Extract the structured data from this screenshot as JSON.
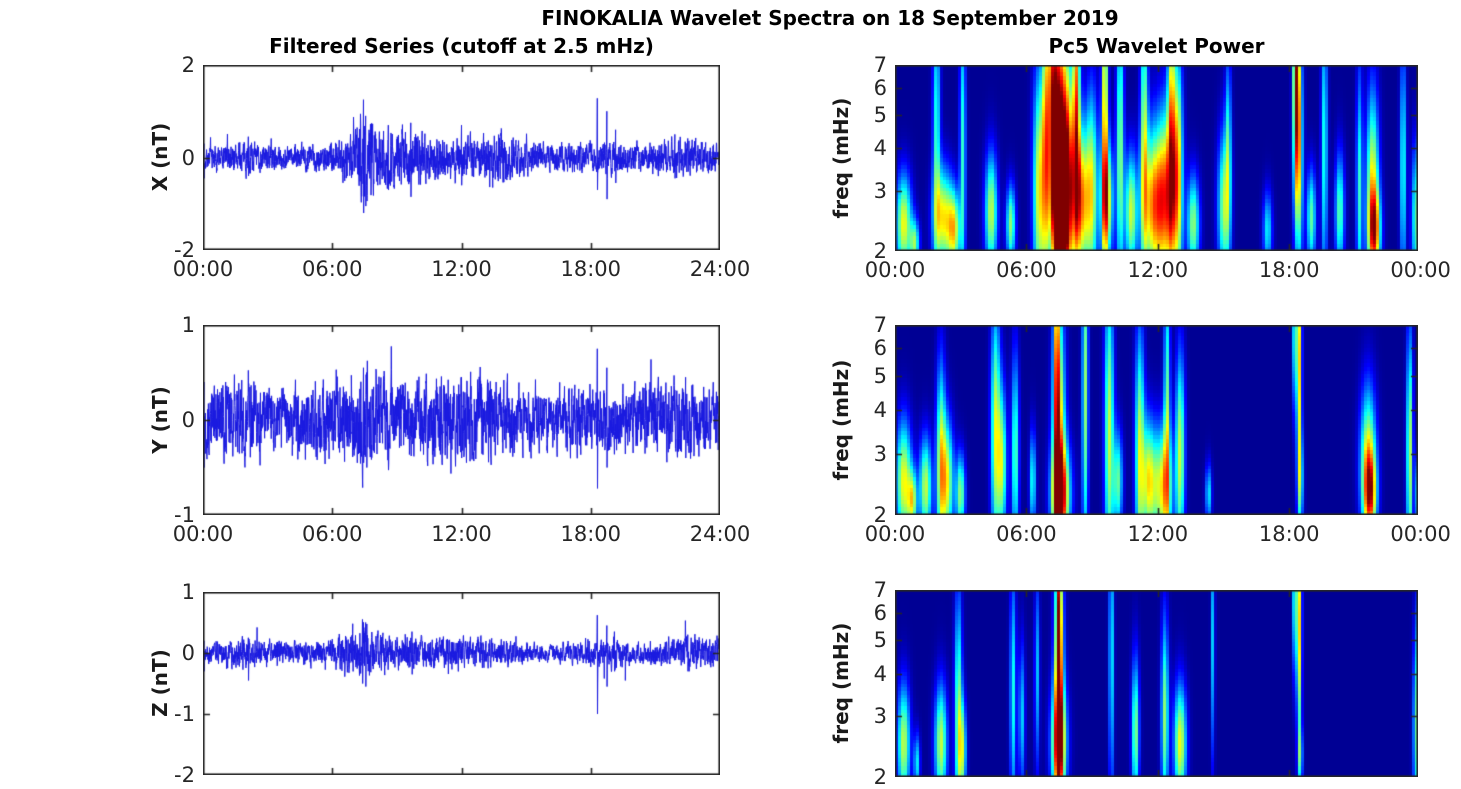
{
  "figure": {
    "title": "FINOKALIA Wavelet Spectra on 18 September 2019",
    "station": "FINOKALIA",
    "date": "18 September 2019",
    "background": "#ffffff",
    "axis_color": "#262626",
    "series_color": "#1a1ae0"
  },
  "columns": {
    "left": {
      "title": "Filtered Series (cutoff at 2.5 mHz)"
    },
    "right": {
      "title": "Pc5 Wavelet Power"
    }
  },
  "chart_data": [
    {
      "id": "x-filtered",
      "type": "line",
      "component": "X",
      "ylabel": "X (nT)",
      "ylim": [
        -2,
        2
      ],
      "yticks": [
        2,
        0,
        -2
      ],
      "xlim_hours": [
        0,
        24
      ],
      "xtick_hours": [
        0,
        6,
        12,
        18,
        24
      ],
      "xtick_labels": [
        "00:00",
        "06:00",
        "12:00",
        "18:00",
        "24:00"
      ],
      "envelope_nT": [
        [
          0,
          0.22
        ],
        [
          1,
          0.25
        ],
        [
          2,
          0.3
        ],
        [
          3,
          0.25
        ],
        [
          4,
          0.22
        ],
        [
          5,
          0.25
        ],
        [
          6,
          0.3
        ],
        [
          6.5,
          0.45
        ],
        [
          7,
          0.55
        ],
        [
          7.4,
          0.9
        ],
        [
          7.6,
          0.9
        ],
        [
          8,
          0.6
        ],
        [
          8.5,
          0.55
        ],
        [
          9,
          0.6
        ],
        [
          9.5,
          0.5
        ],
        [
          10,
          0.5
        ],
        [
          10.5,
          0.42
        ],
        [
          11,
          0.4
        ],
        [
          11.5,
          0.45
        ],
        [
          12,
          0.4
        ],
        [
          12.5,
          0.42
        ],
        [
          13,
          0.45
        ],
        [
          13.8,
          0.5
        ],
        [
          14.5,
          0.35
        ],
        [
          15,
          0.3
        ],
        [
          16,
          0.25
        ],
        [
          17,
          0.25
        ],
        [
          18,
          0.28
        ],
        [
          19,
          0.3
        ],
        [
          20,
          0.25
        ],
        [
          21,
          0.3
        ],
        [
          22,
          0.33
        ],
        [
          22.5,
          0.38
        ],
        [
          23,
          0.3
        ],
        [
          24,
          0.25
        ]
      ],
      "spikes_nT": [
        [
          0.05,
          0.3,
          -0.45
        ],
        [
          2.1,
          0.45,
          -0.4
        ],
        [
          7.45,
          1.25,
          -1.2
        ],
        [
          7.55,
          0.9,
          -1.05
        ],
        [
          8.6,
          0.7,
          -0.7
        ],
        [
          9.65,
          0.75,
          -0.85
        ],
        [
          12.0,
          0.7,
          -0.6
        ],
        [
          18.3,
          1.28,
          -0.7
        ],
        [
          18.75,
          1.0,
          -0.9
        ],
        [
          19.15,
          0.6,
          -0.55
        ],
        [
          21.9,
          0.5,
          -0.45
        ]
      ]
    },
    {
      "id": "y-filtered",
      "type": "line",
      "component": "Y",
      "ylabel": "Y (nT)",
      "ylim": [
        -1,
        1
      ],
      "yticks": [
        1,
        0,
        -1
      ],
      "xlim_hours": [
        0,
        24
      ],
      "xtick_hours": [
        0,
        6,
        12,
        18,
        24
      ],
      "xtick_labels": [
        "00:00",
        "06:00",
        "12:00",
        "18:00",
        "24:00"
      ],
      "envelope_nT": [
        [
          0,
          0.3
        ],
        [
          0.8,
          0.33
        ],
        [
          1.8,
          0.38
        ],
        [
          2.5,
          0.35
        ],
        [
          3,
          0.3
        ],
        [
          4,
          0.3
        ],
        [
          5,
          0.33
        ],
        [
          6,
          0.35
        ],
        [
          7,
          0.4
        ],
        [
          7.5,
          0.5
        ],
        [
          8,
          0.45
        ],
        [
          9,
          0.35
        ],
        [
          10,
          0.37
        ],
        [
          11,
          0.4
        ],
        [
          12,
          0.42
        ],
        [
          13,
          0.42
        ],
        [
          14,
          0.35
        ],
        [
          15,
          0.27
        ],
        [
          16,
          0.25
        ],
        [
          17,
          0.3
        ],
        [
          18,
          0.3
        ],
        [
          19,
          0.3
        ],
        [
          20,
          0.3
        ],
        [
          21,
          0.32
        ],
        [
          22,
          0.35
        ],
        [
          22.5,
          0.38
        ],
        [
          23,
          0.32
        ],
        [
          24,
          0.3
        ]
      ],
      "spikes_nT": [
        [
          0.05,
          0.4,
          -0.5
        ],
        [
          1.8,
          0.42,
          -0.35
        ],
        [
          7.45,
          0.55,
          -0.45
        ],
        [
          7.6,
          0.5,
          -0.5
        ],
        [
          12.0,
          0.45,
          -0.4
        ],
        [
          18.3,
          0.75,
          -0.72
        ],
        [
          18.75,
          0.55,
          -0.5
        ],
        [
          22.4,
          0.45,
          -0.4
        ]
      ]
    },
    {
      "id": "z-filtered",
      "type": "line",
      "component": "Z",
      "ylabel": "Z (nT)",
      "ylim": [
        -2,
        1
      ],
      "yticks": [
        1,
        0,
        -1,
        -2
      ],
      "xlim_hours": [
        0,
        24
      ],
      "xtick_hours": [
        6,
        12,
        18
      ],
      "xtick_labels": [],
      "envelope_nT": [
        [
          0,
          0.15
        ],
        [
          1,
          0.2
        ],
        [
          2,
          0.22
        ],
        [
          3,
          0.18
        ],
        [
          4,
          0.15
        ],
        [
          5,
          0.17
        ],
        [
          6,
          0.2
        ],
        [
          6.8,
          0.3
        ],
        [
          7.5,
          0.4
        ],
        [
          8,
          0.28
        ],
        [
          9,
          0.22
        ],
        [
          10,
          0.22
        ],
        [
          11,
          0.22
        ],
        [
          12,
          0.22
        ],
        [
          13,
          0.22
        ],
        [
          14,
          0.18
        ],
        [
          15,
          0.14
        ],
        [
          16,
          0.12
        ],
        [
          17,
          0.14
        ],
        [
          18,
          0.18
        ],
        [
          19,
          0.22
        ],
        [
          20,
          0.15
        ],
        [
          21,
          0.18
        ],
        [
          22,
          0.22
        ],
        [
          22.6,
          0.26
        ],
        [
          23,
          0.2
        ],
        [
          24,
          0.22
        ]
      ],
      "spikes_nT": [
        [
          0.05,
          0.2,
          -0.3
        ],
        [
          2.1,
          0.25,
          -0.45
        ],
        [
          7.4,
          0.55,
          -0.5
        ],
        [
          7.55,
          0.5,
          -0.55
        ],
        [
          9.7,
          0.35,
          -0.35
        ],
        [
          18.3,
          0.62,
          -1.0
        ],
        [
          18.75,
          0.45,
          -0.55
        ],
        [
          19.1,
          0.35,
          -0.3
        ],
        [
          19.6,
          0.1,
          -0.45
        ],
        [
          22.5,
          0.3,
          -0.3
        ]
      ]
    },
    {
      "id": "x-wavelet",
      "type": "heatmap",
      "component": "X",
      "ylabel": "freq (mHz)",
      "yscale": "log",
      "ylim_mHz": [
        2,
        7
      ],
      "yticks": [
        7,
        6,
        5,
        4,
        3,
        2
      ],
      "xtick_hours": [
        0,
        6,
        12,
        18,
        24
      ],
      "xtick_labels": [
        "00:00",
        "06:00",
        "12:00",
        "18:00",
        "00:00"
      ],
      "colormap": "jet",
      "hotspot_format": [
        "hour",
        "freq_mHz",
        "sigma_hours",
        "sigma_log10f",
        "power"
      ],
      "hotspots": [
        [
          0.4,
          2.4,
          0.25,
          0.1,
          0.6
        ],
        [
          0.9,
          2.1,
          0.15,
          0.05,
          0.45
        ],
        [
          1.9,
          4.5,
          0.12,
          0.28,
          0.4
        ],
        [
          2.2,
          2.5,
          0.3,
          0.1,
          0.6
        ],
        [
          2.7,
          2.3,
          0.2,
          0.08,
          0.55
        ],
        [
          3.1,
          4.0,
          0.1,
          0.3,
          0.4
        ],
        [
          4.4,
          2.6,
          0.2,
          0.12,
          0.55
        ],
        [
          5.3,
          2.4,
          0.15,
          0.08,
          0.5
        ],
        [
          6.6,
          3.0,
          0.2,
          0.25,
          0.6
        ],
        [
          6.9,
          4.5,
          0.12,
          0.3,
          0.55
        ],
        [
          7.2,
          6.0,
          0.15,
          0.2,
          0.6
        ],
        [
          7.5,
          4.0,
          0.22,
          0.3,
          0.95
        ],
        [
          7.5,
          2.7,
          0.3,
          0.15,
          0.8
        ],
        [
          7.9,
          3.3,
          0.2,
          0.25,
          0.75
        ],
        [
          8.3,
          5.5,
          0.12,
          0.3,
          0.7
        ],
        [
          8.5,
          2.8,
          0.25,
          0.15,
          0.7
        ],
        [
          9.0,
          3.0,
          0.2,
          0.2,
          0.55
        ],
        [
          9.6,
          5.0,
          0.1,
          0.35,
          0.68
        ],
        [
          9.7,
          2.8,
          0.2,
          0.12,
          0.6
        ],
        [
          10.3,
          4.0,
          0.12,
          0.3,
          0.5
        ],
        [
          10.8,
          2.6,
          0.2,
          0.12,
          0.55
        ],
        [
          11.4,
          4.5,
          0.12,
          0.3,
          0.5
        ],
        [
          11.8,
          2.7,
          0.35,
          0.15,
          0.62
        ],
        [
          12.4,
          2.9,
          0.35,
          0.18,
          0.65
        ],
        [
          12.6,
          5.0,
          0.12,
          0.3,
          0.55
        ],
        [
          12.9,
          3.5,
          0.15,
          0.25,
          0.55
        ],
        [
          13.6,
          2.4,
          0.2,
          0.1,
          0.5
        ],
        [
          15.0,
          2.7,
          0.2,
          0.15,
          0.5
        ],
        [
          15.2,
          4.0,
          0.1,
          0.2,
          0.35
        ],
        [
          17.0,
          2.3,
          0.15,
          0.08,
          0.35
        ],
        [
          18.3,
          6.2,
          0.1,
          0.25,
          0.8
        ],
        [
          18.45,
          4.0,
          0.12,
          0.25,
          0.55
        ],
        [
          19.0,
          2.5,
          0.15,
          0.1,
          0.45
        ],
        [
          19.6,
          4.0,
          0.1,
          0.3,
          0.4
        ],
        [
          20.3,
          2.6,
          0.15,
          0.12,
          0.45
        ],
        [
          21.2,
          3.0,
          0.1,
          0.25,
          0.4
        ],
        [
          21.8,
          3.0,
          0.2,
          0.2,
          0.62
        ],
        [
          21.9,
          2.3,
          0.2,
          0.08,
          0.55
        ],
        [
          23.2,
          3.5,
          0.1,
          0.25,
          0.4
        ],
        [
          23.8,
          2.5,
          0.15,
          0.15,
          0.45
        ]
      ]
    },
    {
      "id": "y-wavelet",
      "type": "heatmap",
      "component": "Y",
      "ylabel": "freq (mHz)",
      "yscale": "log",
      "ylim_mHz": [
        2,
        7
      ],
      "yticks": [
        7,
        6,
        5,
        4,
        3,
        2
      ],
      "xtick_hours": [
        0,
        6,
        12,
        18,
        24
      ],
      "xtick_labels": [
        "00:00",
        "06:00",
        "12:00",
        "18:00",
        "00:00"
      ],
      "colormap": "jet",
      "hotspot_format": [
        "hour",
        "freq_mHz",
        "sigma_hours",
        "sigma_log10f",
        "power"
      ],
      "hotspots": [
        [
          0.4,
          2.5,
          0.25,
          0.12,
          0.6
        ],
        [
          0.8,
          2.2,
          0.15,
          0.06,
          0.5
        ],
        [
          1.4,
          2.4,
          0.2,
          0.1,
          0.55
        ],
        [
          2.1,
          2.8,
          0.15,
          0.2,
          0.55
        ],
        [
          2.4,
          2.5,
          0.2,
          0.12,
          0.55
        ],
        [
          3.0,
          2.3,
          0.15,
          0.08,
          0.5
        ],
        [
          4.6,
          3.5,
          0.15,
          0.25,
          0.55
        ],
        [
          4.9,
          2.8,
          0.15,
          0.15,
          0.5
        ],
        [
          5.5,
          3.0,
          0.12,
          0.2,
          0.45
        ],
        [
          6.3,
          2.5,
          0.1,
          0.1,
          0.4
        ],
        [
          7.4,
          5.5,
          0.1,
          0.3,
          0.5
        ],
        [
          7.5,
          3.0,
          0.2,
          0.3,
          0.68
        ],
        [
          7.6,
          2.3,
          0.3,
          0.1,
          0.7
        ],
        [
          8.7,
          4.5,
          0.1,
          0.35,
          0.5
        ],
        [
          9.8,
          3.5,
          0.15,
          0.3,
          0.55
        ],
        [
          10.2,
          2.5,
          0.15,
          0.1,
          0.45
        ],
        [
          11.2,
          3.0,
          0.15,
          0.25,
          0.55
        ],
        [
          11.6,
          2.5,
          0.2,
          0.12,
          0.55
        ],
        [
          12.2,
          2.4,
          0.3,
          0.12,
          0.62
        ],
        [
          12.4,
          4.0,
          0.1,
          0.3,
          0.45
        ],
        [
          13.0,
          3.0,
          0.15,
          0.2,
          0.55
        ],
        [
          14.3,
          2.3,
          0.1,
          0.06,
          0.35
        ],
        [
          18.25,
          6.5,
          0.06,
          0.15,
          0.55
        ],
        [
          18.45,
          5.5,
          0.08,
          0.25,
          0.65
        ],
        [
          18.5,
          2.5,
          0.1,
          0.1,
          0.35
        ],
        [
          21.6,
          2.8,
          0.25,
          0.15,
          0.62
        ],
        [
          21.7,
          2.3,
          0.2,
          0.08,
          0.55
        ],
        [
          23.5,
          3.0,
          0.1,
          0.25,
          0.55
        ],
        [
          23.9,
          2.3,
          0.1,
          0.08,
          0.4
        ]
      ]
    },
    {
      "id": "z-wavelet",
      "type": "heatmap",
      "component": "Z",
      "ylabel": "freq (mHz)",
      "yscale": "log",
      "ylim_mHz": [
        2,
        7
      ],
      "yticks": [
        7,
        6,
        5,
        4,
        3,
        2
      ],
      "xtick_hours": [
        6,
        12,
        18
      ],
      "xtick_labels": [],
      "colormap": "jet",
      "hotspot_format": [
        "hour",
        "freq_mHz",
        "sigma_hours",
        "sigma_log10f",
        "power"
      ],
      "hotspots": [
        [
          0.4,
          2.5,
          0.2,
          0.12,
          0.55
        ],
        [
          1.0,
          2.2,
          0.1,
          0.06,
          0.35
        ],
        [
          2.1,
          2.5,
          0.2,
          0.12,
          0.55
        ],
        [
          2.9,
          3.0,
          0.12,
          0.25,
          0.5
        ],
        [
          3.1,
          2.4,
          0.12,
          0.1,
          0.45
        ],
        [
          5.4,
          3.5,
          0.1,
          0.25,
          0.38
        ],
        [
          5.8,
          3.0,
          0.1,
          0.15,
          0.32
        ],
        [
          6.5,
          4.0,
          0.08,
          0.2,
          0.3
        ],
        [
          7.5,
          3.8,
          0.15,
          0.3,
          0.72
        ],
        [
          7.5,
          2.5,
          0.25,
          0.12,
          0.66
        ],
        [
          7.5,
          6.0,
          0.08,
          0.2,
          0.45
        ],
        [
          9.9,
          4.5,
          0.08,
          0.3,
          0.38
        ],
        [
          11.0,
          2.7,
          0.12,
          0.15,
          0.5
        ],
        [
          12.3,
          3.0,
          0.12,
          0.2,
          0.5
        ],
        [
          13.0,
          2.5,
          0.2,
          0.12,
          0.6
        ],
        [
          14.5,
          5.0,
          0.06,
          0.25,
          0.32
        ],
        [
          18.25,
          6.5,
          0.06,
          0.15,
          0.55
        ],
        [
          18.45,
          5.5,
          0.08,
          0.25,
          0.65
        ],
        [
          18.5,
          2.3,
          0.08,
          0.06,
          0.32
        ],
        [
          23.8,
          2.8,
          0.1,
          0.2,
          0.45
        ],
        [
          23.9,
          5.5,
          0.05,
          0.15,
          0.3
        ]
      ]
    }
  ]
}
